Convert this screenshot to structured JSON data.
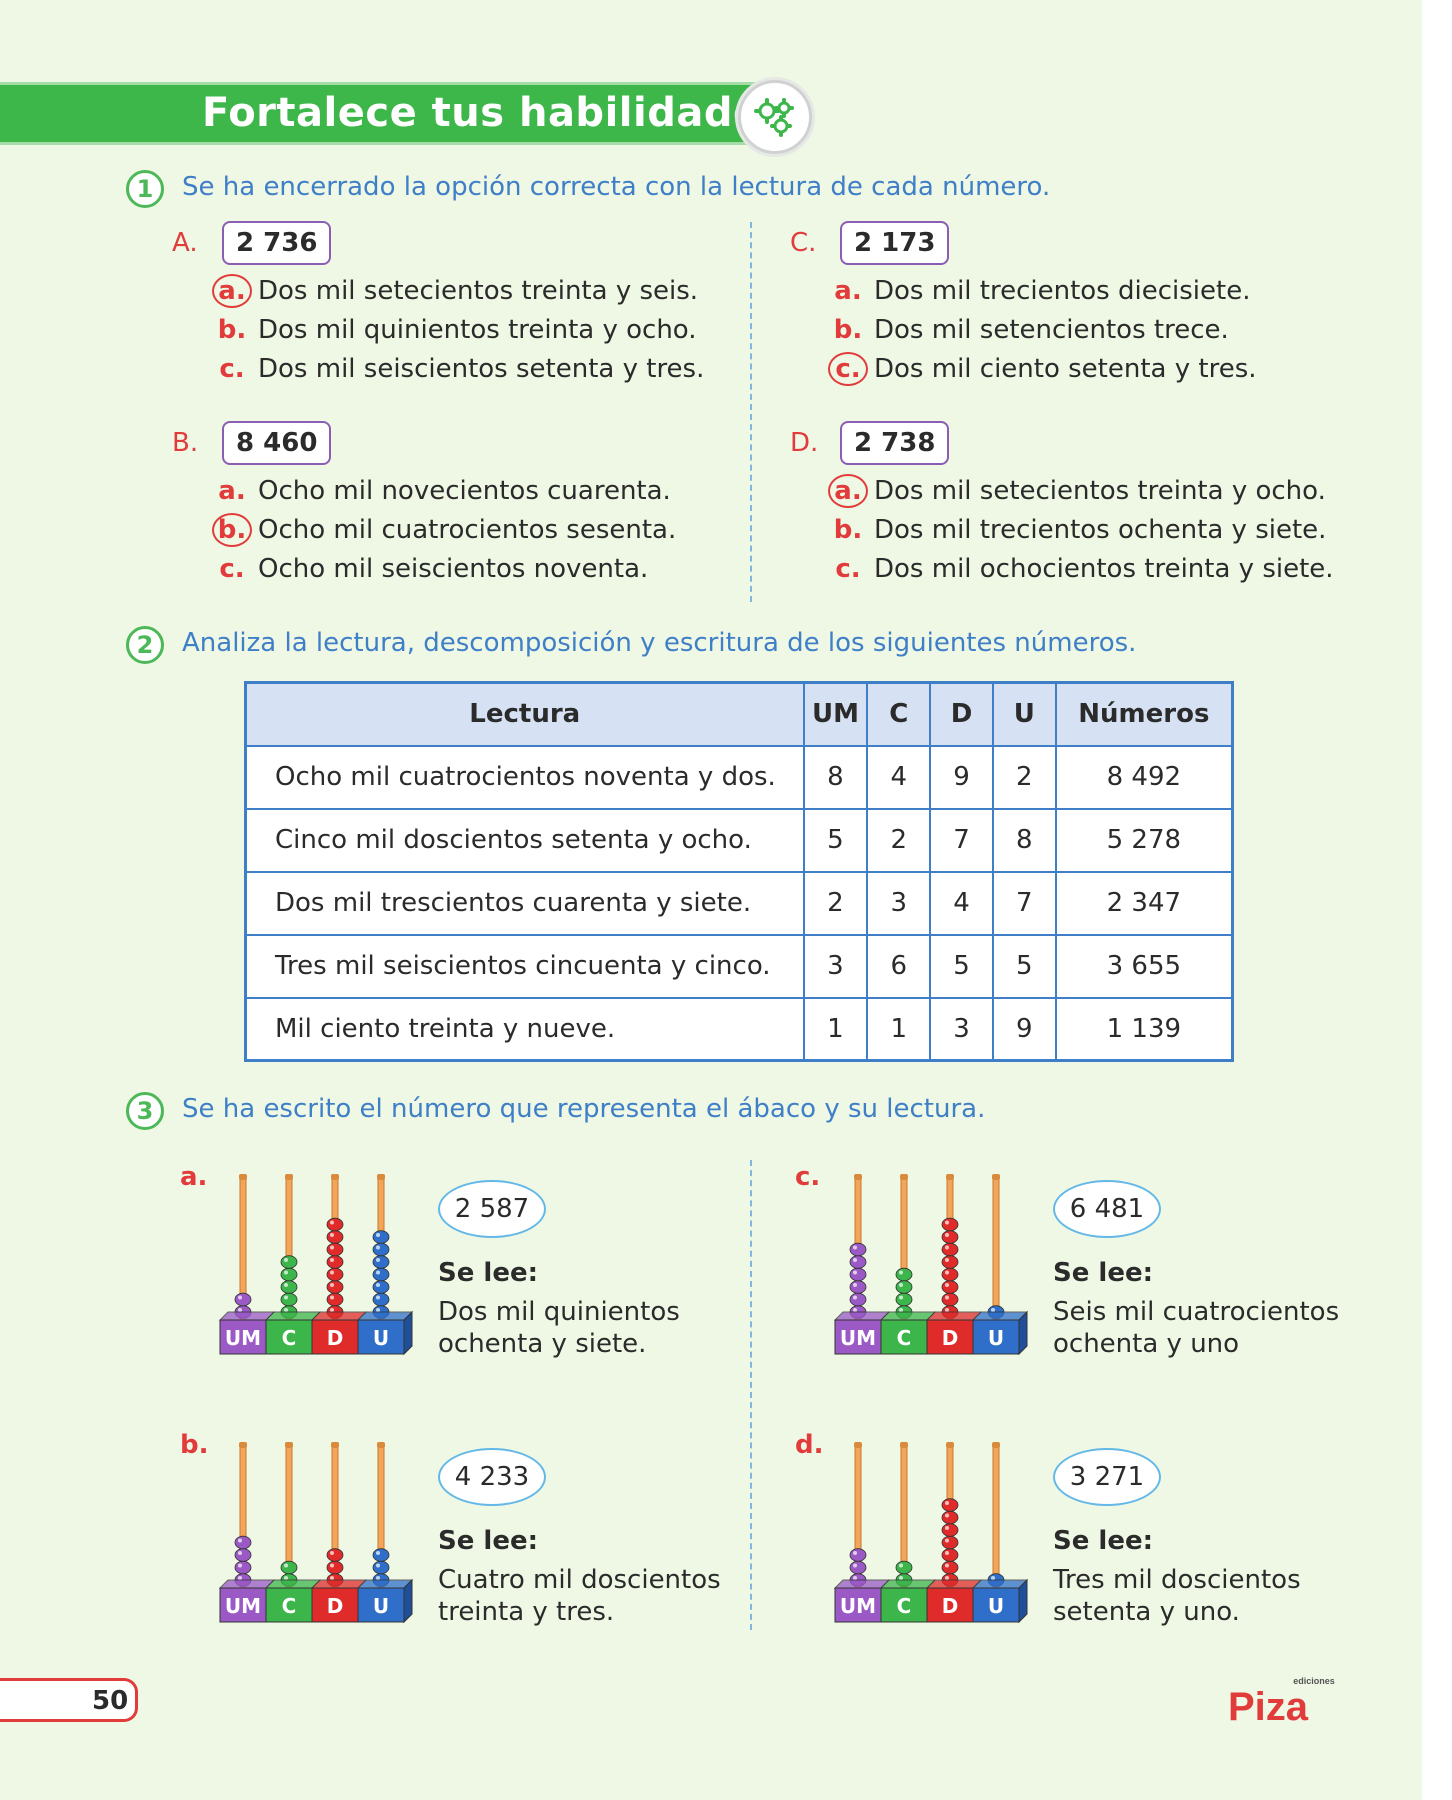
{
  "header": {
    "title": "Fortalece tus habilidades",
    "icon": "gears-icon"
  },
  "section1": {
    "num": "1",
    "instruction": "Se ha encerrado la opción correcta con la lectura de cada número.",
    "groups": [
      {
        "letter": "A.",
        "number": "2 736",
        "circled": 0,
        "options": [
          {
            "l": "a.",
            "t": "Dos mil setecientos treinta y seis."
          },
          {
            "l": "b.",
            "t": "Dos mil quinientos treinta y ocho."
          },
          {
            "l": "c.",
            "t": "Dos mil seiscientos setenta y tres."
          }
        ]
      },
      {
        "letter": "B.",
        "number": "8 460",
        "circled": 1,
        "options": [
          {
            "l": "a.",
            "t": "Ocho mil novecientos cuarenta."
          },
          {
            "l": "b.",
            "t": "Ocho mil cuatrocientos sesenta."
          },
          {
            "l": "c.",
            "t": "Ocho mil seiscientos noventa."
          }
        ]
      },
      {
        "letter": "C.",
        "number": "2 173",
        "circled": 2,
        "options": [
          {
            "l": "a.",
            "t": "Dos mil trecientos diecisiete."
          },
          {
            "l": "b.",
            "t": "Dos mil setencientos trece."
          },
          {
            "l": "c.",
            "t": "Dos mil ciento setenta y tres."
          }
        ]
      },
      {
        "letter": "D.",
        "number": "2 738",
        "circled": 0,
        "options": [
          {
            "l": "a.",
            "t": "Dos mil setecientos treinta y ocho."
          },
          {
            "l": "b.",
            "t": "Dos mil trecientos ochenta y siete."
          },
          {
            "l": "c.",
            "t": "Dos mil ochocientos treinta y siete."
          }
        ]
      }
    ]
  },
  "section2": {
    "num": "2",
    "instruction": "Analiza la lectura, descomposición y escritura de los siguientes números.",
    "headers": [
      "Lectura",
      "UM",
      "C",
      "D",
      "U",
      "Números"
    ],
    "rows": [
      [
        "Ocho mil  cuatrocientos noventa y dos.",
        "8",
        "4",
        "9",
        "2",
        "8 492"
      ],
      [
        "Cinco mil doscientos setenta y ocho.",
        "5",
        "2",
        "7",
        "8",
        "5 278"
      ],
      [
        "Dos mil trescientos cuarenta y siete.",
        "2",
        "3",
        "4",
        "7",
        "2 347"
      ],
      [
        "Tres mil seiscientos cincuenta y cinco.",
        "3",
        "6",
        "5",
        "5",
        "3 655"
      ],
      [
        "Mil ciento treinta y nueve.",
        "1",
        "1",
        "3",
        "9",
        "1 139"
      ]
    ]
  },
  "section3": {
    "num": "3",
    "instruction": "Se ha escrito el número que representa el ábaco y su lectura.",
    "se_lee": "Se lee:",
    "place_labels": [
      "UM",
      "C",
      "D",
      "U"
    ],
    "bead_colors": [
      "#9b59c6",
      "#3cb54a",
      "#e02b2b",
      "#2f6fc9"
    ],
    "items": [
      {
        "label": "a.",
        "number": "2 587",
        "reading": "Dos mil quinientos ochenta y siete.",
        "beads": [
          2,
          5,
          8,
          7
        ]
      },
      {
        "label": "b.",
        "number": "4 233",
        "reading": "Cuatro mil doscientos treinta y tres.",
        "beads": [
          4,
          2,
          3,
          3
        ]
      },
      {
        "label": "c.",
        "number": "6 481",
        "reading": "Seis mil cuatrocientos ochenta y uno",
        "beads": [
          6,
          4,
          8,
          1
        ]
      },
      {
        "label": "d.",
        "number": "3 271",
        "reading": "Tres mil doscientos setenta y uno.",
        "beads": [
          3,
          2,
          7,
          1
        ]
      }
    ]
  },
  "footer": {
    "page": "50",
    "logo_small": "ediciones",
    "logo": "Piza"
  }
}
